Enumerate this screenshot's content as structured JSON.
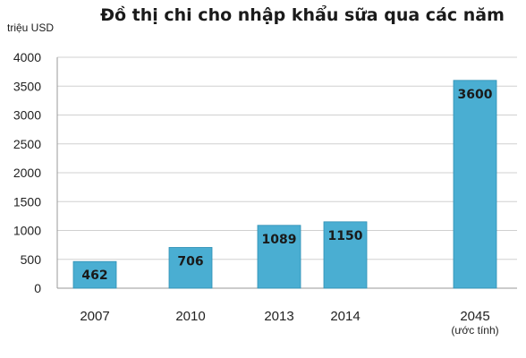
{
  "chart_data": {
    "type": "bar",
    "title": "Đồ thị chi cho nhập khẩu sữa qua các năm",
    "ylabel": "triệu USD",
    "xlabel": "",
    "categories": [
      "2007",
      "2010",
      "2013",
      "2014",
      "2045"
    ],
    "category_notes": [
      "",
      "",
      "",
      "",
      "(ước tính)"
    ],
    "values": [
      462,
      706,
      1089,
      1150,
      3600
    ],
    "data_labels": [
      "462",
      "706",
      "1089",
      "1150",
      "3600"
    ],
    "ylim": [
      0,
      4000
    ],
    "yticks": [
      0,
      500,
      1000,
      1500,
      2000,
      2500,
      3000,
      3500,
      4000
    ],
    "grid": true,
    "legend": "none",
    "colors": {
      "bar": "#4aaed2",
      "bar_edge": "#2e8fb4",
      "grid": "#d0d0d0",
      "axis": "#9a9a9a"
    }
  }
}
